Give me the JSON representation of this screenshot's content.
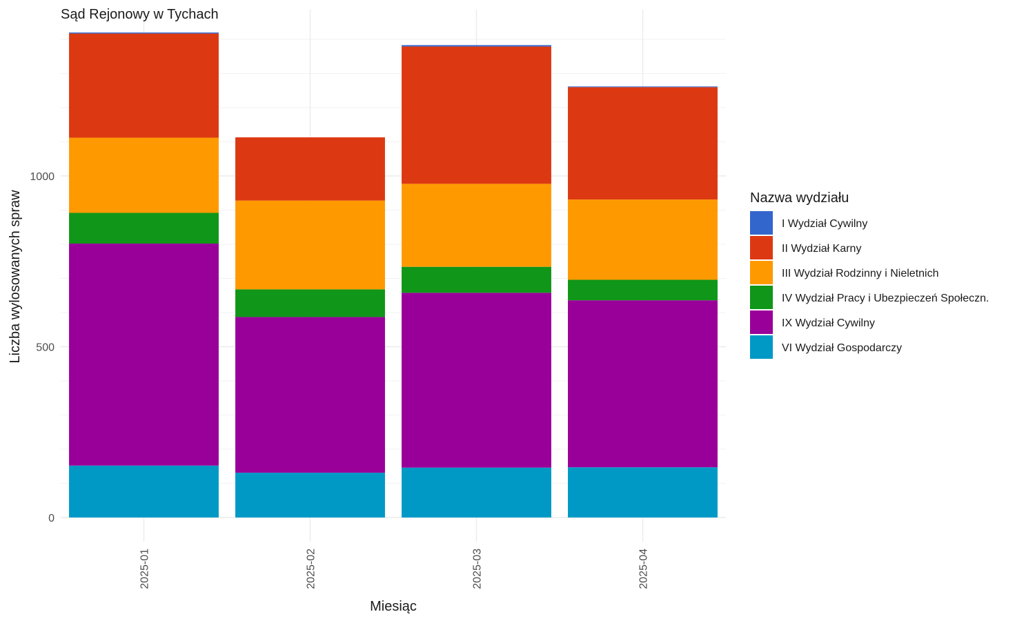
{
  "chart_data": {
    "type": "bar",
    "stacked": true,
    "title": "Sąd Rejonowy w Tychach",
    "xlabel": "Miesiąc",
    "ylabel": "Liczba wylosowanych spraw",
    "categories": [
      "2025-01",
      "2025-02",
      "2025-03",
      "2025-04"
    ],
    "ylim": [
      0,
      1430
    ],
    "yticks": [
      0,
      500,
      1000
    ],
    "grid": true,
    "legend": {
      "title": "Nazwa wydziału",
      "placement": "right"
    },
    "series": [
      {
        "name": "VI Wydział Gospodarczy",
        "color": "#0099c6",
        "values": [
          152,
          131,
          146,
          147
        ]
      },
      {
        "name": "IX Wydział Cywilny",
        "color": "#990099",
        "values": [
          650,
          456,
          512,
          489
        ]
      },
      {
        "name": "IV Wydział Pracy i Ubezpieczeń Społeczn.",
        "color": "#109618",
        "values": [
          90,
          81,
          76,
          60
        ]
      },
      {
        "name": "III Wydział Rodzinny i Nieletnich",
        "color": "#ff9900",
        "values": [
          220,
          260,
          243,
          235
        ]
      },
      {
        "name": "II Wydział Karny",
        "color": "#dc3912",
        "values": [
          305,
          185,
          402,
          329
        ]
      },
      {
        "name": "I Wydział Cywilny",
        "color": "#3366cc",
        "values": [
          3,
          0,
          4,
          2
        ]
      }
    ],
    "legend_order": [
      "I Wydział Cywilny",
      "II Wydział Karny",
      "III Wydział Rodzinny i Nieletnich",
      "IV Wydział Pracy i Ubezpieczeń Społeczn.",
      "IX Wydział Cywilny",
      "VI Wydział Gospodarczy"
    ]
  }
}
